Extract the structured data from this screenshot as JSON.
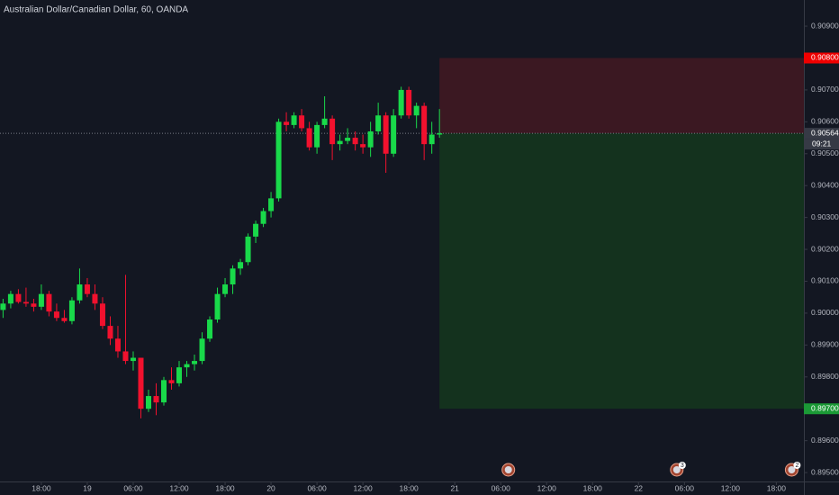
{
  "chart_data": {
    "type": "candlestick",
    "title": "Australian Dollar/Canadian Dollar, 60, OANDA",
    "up_color": "#19d94a",
    "down_color": "#f2112e",
    "grid": false,
    "x": [
      -5,
      -4,
      -3,
      -2,
      -1,
      0,
      1,
      2,
      3,
      4,
      5,
      6,
      7,
      8,
      9,
      10,
      11,
      12,
      13,
      14,
      15,
      16,
      17,
      18,
      19,
      20,
      21,
      22,
      23,
      24,
      25,
      26,
      27,
      28,
      29,
      30,
      31,
      32,
      33,
      34,
      35,
      36,
      37,
      38,
      39,
      40,
      41,
      42,
      43,
      44,
      45,
      46,
      47,
      48,
      49,
      50,
      51,
      52
    ],
    "open": [
      0.9001,
      0.9003,
      0.9006,
      0.90035,
      0.9003,
      0.9002,
      0.9006,
      0.90005,
      0.89985,
      0.89975,
      0.9004,
      0.9009,
      0.9006,
      0.9003,
      0.8996,
      0.8992,
      0.8988,
      0.8985,
      0.8986,
      0.897,
      0.8974,
      0.8972,
      0.8979,
      0.8978,
      0.8983,
      0.8984,
      0.8985,
      0.8992,
      0.8998,
      0.9006,
      0.9009,
      0.9014,
      0.9016,
      0.9024,
      0.9028,
      0.9032,
      0.9036,
      0.906,
      0.9059,
      0.9062,
      0.9058,
      0.9052,
      0.9059,
      0.9061,
      0.9053,
      0.9054,
      0.9055,
      0.9053,
      0.9052,
      0.9057,
      0.9062,
      0.905,
      0.9062,
      0.907,
      0.9062,
      0.9065,
      0.9053,
      0.9056
    ],
    "high": [
      0.90045,
      0.9007,
      0.90075,
      0.9008,
      0.90045,
      0.9009,
      0.9007,
      0.9003,
      0.9001,
      0.9005,
      0.9014,
      0.9011,
      0.9009,
      0.9005,
      0.8999,
      0.8996,
      0.9012,
      0.8988,
      0.8986,
      0.8976,
      0.8978,
      0.898,
      0.8983,
      0.8985,
      0.8985,
      0.8987,
      0.8994,
      0.8999,
      0.9008,
      0.9011,
      0.9015,
      0.9017,
      0.9025,
      0.9029,
      0.9033,
      0.9038,
      0.9061,
      0.9063,
      0.9063,
      0.9064,
      0.906,
      0.906,
      0.9068,
      0.9062,
      0.9056,
      0.9058,
      0.9057,
      0.9056,
      0.906,
      0.9066,
      0.9063,
      0.9064,
      0.9071,
      0.9071,
      0.9066,
      0.9066,
      0.906,
      0.9064
    ],
    "low": [
      0.89985,
      0.90015,
      0.9003,
      0.9002,
      0.90005,
      0.9001,
      0.8999,
      0.89975,
      0.8997,
      0.89965,
      0.9003,
      0.9005,
      0.9001,
      0.8995,
      0.899,
      0.8986,
      0.8984,
      0.8982,
      0.8967,
      0.8969,
      0.8968,
      0.8971,
      0.8976,
      0.8977,
      0.898,
      0.8982,
      0.8984,
      0.8991,
      0.8997,
      0.9005,
      0.9006,
      0.9012,
      0.9015,
      0.9022,
      0.9027,
      0.903,
      0.9035,
      0.9057,
      0.9058,
      0.9057,
      0.9051,
      0.905,
      0.9058,
      0.9048,
      0.9051,
      0.9053,
      0.9051,
      0.905,
      0.9049,
      0.9056,
      0.9044,
      0.9049,
      0.9061,
      0.9061,
      0.9058,
      0.9048,
      0.905,
      0.9055
    ],
    "close": [
      0.9003,
      0.9006,
      0.90035,
      0.9003,
      0.9002,
      0.9006,
      0.90005,
      0.89985,
      0.89975,
      0.9004,
      0.9009,
      0.9006,
      0.9003,
      0.8996,
      0.8992,
      0.8988,
      0.8985,
      0.8986,
      0.897,
      0.8974,
      0.8972,
      0.8979,
      0.8978,
      0.8983,
      0.8984,
      0.8985,
      0.8992,
      0.8998,
      0.9006,
      0.9009,
      0.9014,
      0.9016,
      0.9024,
      0.9028,
      0.9032,
      0.9036,
      0.906,
      0.9059,
      0.9062,
      0.9058,
      0.9052,
      0.9059,
      0.9061,
      0.9053,
      0.9054,
      0.9055,
      0.9053,
      0.9052,
      0.9057,
      0.9062,
      0.905,
      0.9062,
      0.907,
      0.9062,
      0.9065,
      0.9053,
      0.9056,
      0.90564
    ],
    "xlim": [
      -5.4,
      99.6
    ],
    "xticks": [
      {
        "value": 0,
        "label": "18:00"
      },
      {
        "value": 6,
        "label": "19"
      },
      {
        "value": 12,
        "label": "06:00"
      },
      {
        "value": 18,
        "label": "12:00"
      },
      {
        "value": 24,
        "label": "18:00"
      },
      {
        "value": 30,
        "label": "20"
      },
      {
        "value": 36,
        "label": "06:00"
      },
      {
        "value": 42,
        "label": "12:00"
      },
      {
        "value": 48,
        "label": "18:00"
      },
      {
        "value": 54,
        "label": "21"
      },
      {
        "value": 60,
        "label": "06:00"
      },
      {
        "value": 66,
        "label": "12:00"
      },
      {
        "value": 72,
        "label": "18:00"
      },
      {
        "value": 78,
        "label": "22"
      },
      {
        "value": 84,
        "label": "06:00"
      },
      {
        "value": 90,
        "label": "12:00"
      },
      {
        "value": 96,
        "label": "18:00"
      }
    ],
    "ylim": [
      0.89472,
      0.90982
    ],
    "yticks": [
      {
        "value": 0.909,
        "label": "0.90900"
      },
      {
        "value": 0.907,
        "label": "0.90700"
      },
      {
        "value": 0.906,
        "label": "0.90600"
      },
      {
        "value": 0.905,
        "label": "0.90500"
      },
      {
        "value": 0.904,
        "label": "0.90400"
      },
      {
        "value": 0.903,
        "label": "0.90300"
      },
      {
        "value": 0.902,
        "label": "0.90200"
      },
      {
        "value": 0.901,
        "label": "0.90100"
      },
      {
        "value": 0.9,
        "label": "0.90000"
      },
      {
        "value": 0.899,
        "label": "0.89900"
      },
      {
        "value": 0.898,
        "label": "0.89800"
      },
      {
        "value": 0.896,
        "label": "0.89600"
      },
      {
        "value": 0.895,
        "label": "0.89500"
      }
    ],
    "position": {
      "x_start": 52,
      "entry": 0.90564,
      "stop": 0.908,
      "target": 0.897,
      "stop_color": "#3b1822",
      "target_color": "#14321e"
    },
    "price_tags": [
      {
        "value": 0.908,
        "label": "0.90800",
        "color": "#f00000"
      },
      {
        "value": 0.90564,
        "label": "0.90564",
        "color": "#363a45"
      },
      {
        "value": 0.897,
        "label": "0.89700",
        "color": "#1b9a36"
      }
    ],
    "countdown": "09:21",
    "events": [
      {
        "x": 61
      },
      {
        "x": 83,
        "label": "3"
      },
      {
        "x": 98,
        "label": "2"
      }
    ]
  }
}
